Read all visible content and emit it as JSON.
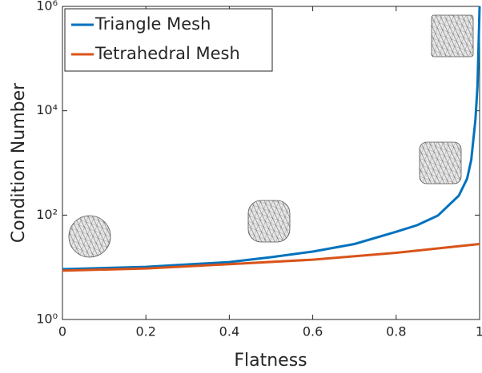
{
  "chart_data": {
    "type": "line",
    "x_label": "Flatness",
    "y_label": "Condition Number",
    "log_y": true,
    "legend": "top-left",
    "xlim": [
      0,
      1
    ],
    "xticks": [
      0,
      0.2,
      0.4,
      0.6,
      0.8,
      1
    ],
    "ylim": [
      1,
      1000000
    ],
    "yticks": [
      {
        "value": 1,
        "label": "10⁰"
      },
      {
        "value": 100,
        "label": "10²"
      },
      {
        "value": 10000,
        "label": "10⁴"
      },
      {
        "value": 1000000,
        "label": "10⁶"
      }
    ],
    "series": [
      {
        "name": "Triangle Mesh",
        "color": "#0072bd",
        "x": [
          0,
          0.2,
          0.4,
          0.5,
          0.6,
          0.7,
          0.8,
          0.85,
          0.9,
          0.95,
          0.97,
          0.98,
          0.99,
          0.995,
          1
        ],
        "values": [
          9.2,
          10.2,
          12.6,
          15.6,
          20,
          28,
          48,
          64,
          98,
          236,
          500,
          1150,
          6800,
          30000,
          1000000
        ]
      },
      {
        "name": "Tetrahedral Mesh",
        "color": "#d95319",
        "x": [
          0,
          0.2,
          0.4,
          0.6,
          0.8,
          0.9,
          1
        ],
        "values": [
          8.6,
          9.5,
          11.5,
          14,
          19,
          23,
          28
        ]
      }
    ]
  }
}
